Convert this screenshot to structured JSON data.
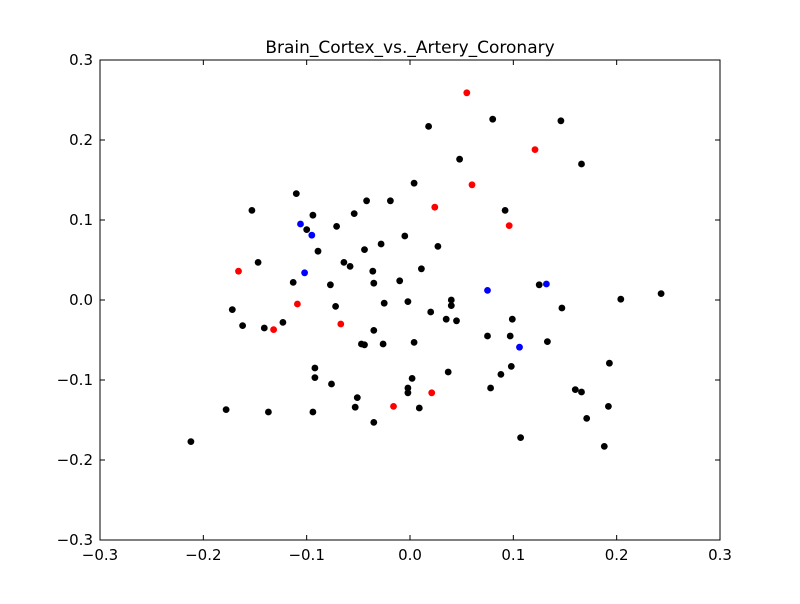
{
  "chart_data": {
    "type": "scatter",
    "title": "Brain_Cortex_vs._Artery_Coronary",
    "xlabel": "",
    "ylabel": "",
    "xlim": [
      -0.3,
      0.3
    ],
    "ylim": [
      -0.3,
      0.3
    ],
    "x_ticks": [
      "−0.3",
      "−0.2",
      "−0.1",
      "0.0",
      "0.1",
      "0.2",
      "0.3"
    ],
    "y_ticks": [
      "0.3",
      "0.2",
      "0.1",
      "0.0",
      "−0.1",
      "−0.2",
      "−0.3"
    ],
    "x_tick_values": [
      -0.3,
      -0.2,
      -0.1,
      0.0,
      0.1,
      0.2,
      0.3
    ],
    "y_tick_values": [
      0.3,
      0.2,
      0.1,
      0.0,
      -0.1,
      -0.2,
      -0.3
    ],
    "grid": false,
    "legend": "none",
    "series": [
      {
        "color": "#000000",
        "points": [
          [
            -0.212,
            -0.177
          ],
          [
            -0.178,
            -0.137
          ],
          [
            -0.172,
            -0.012
          ],
          [
            -0.162,
            -0.032
          ],
          [
            -0.153,
            0.112
          ],
          [
            -0.147,
            0.047
          ],
          [
            -0.141,
            -0.035
          ],
          [
            -0.137,
            -0.14
          ],
          [
            -0.123,
            -0.028
          ],
          [
            -0.113,
            0.022
          ],
          [
            -0.11,
            0.133
          ],
          [
            -0.1,
            0.088
          ],
          [
            -0.094,
            0.106
          ],
          [
            -0.094,
            -0.14
          ],
          [
            -0.092,
            -0.085
          ],
          [
            -0.092,
            -0.097
          ],
          [
            -0.089,
            0.061
          ],
          [
            -0.077,
            0.019
          ],
          [
            -0.076,
            -0.105
          ],
          [
            -0.072,
            -0.008
          ],
          [
            -0.071,
            0.092
          ],
          [
            -0.064,
            0.047
          ],
          [
            -0.058,
            0.042
          ],
          [
            -0.054,
            0.108
          ],
          [
            -0.053,
            -0.134
          ],
          [
            -0.051,
            -0.122
          ],
          [
            -0.047,
            -0.055
          ],
          [
            -0.044,
            0.063
          ],
          [
            -0.044,
            -0.056
          ],
          [
            -0.042,
            0.124
          ],
          [
            -0.036,
            0.036
          ],
          [
            -0.035,
            0.021
          ],
          [
            -0.035,
            -0.038
          ],
          [
            -0.035,
            -0.153
          ],
          [
            -0.028,
            0.07
          ],
          [
            -0.026,
            -0.055
          ],
          [
            -0.025,
            -0.004
          ],
          [
            -0.019,
            0.124
          ],
          [
            -0.01,
            0.024
          ],
          [
            -0.005,
            0.08
          ],
          [
            -0.002,
            -0.002
          ],
          [
            -0.002,
            -0.11
          ],
          [
            -0.002,
            -0.116
          ],
          [
            0.002,
            -0.098
          ],
          [
            0.004,
            0.146
          ],
          [
            0.004,
            -0.053
          ],
          [
            0.009,
            -0.135
          ],
          [
            0.011,
            0.039
          ],
          [
            0.018,
            0.217
          ],
          [
            0.02,
            -0.015
          ],
          [
            0.027,
            0.067
          ],
          [
            0.035,
            -0.024
          ],
          [
            0.037,
            -0.09
          ],
          [
            0.04,
            0.0
          ],
          [
            0.04,
            -0.007
          ],
          [
            0.045,
            -0.026
          ],
          [
            0.048,
            0.176
          ],
          [
            0.075,
            -0.045
          ],
          [
            0.078,
            -0.11
          ],
          [
            0.08,
            0.226
          ],
          [
            0.088,
            -0.093
          ],
          [
            0.092,
            0.112
          ],
          [
            0.097,
            -0.045
          ],
          [
            0.098,
            -0.083
          ],
          [
            0.099,
            -0.024
          ],
          [
            0.107,
            -0.172
          ],
          [
            0.125,
            0.019
          ],
          [
            0.133,
            -0.052
          ],
          [
            0.146,
            0.224
          ],
          [
            0.147,
            -0.01
          ],
          [
            0.16,
            -0.112
          ],
          [
            0.166,
            0.17
          ],
          [
            0.166,
            -0.115
          ],
          [
            0.171,
            -0.148
          ],
          [
            0.188,
            -0.183
          ],
          [
            0.192,
            -0.133
          ],
          [
            0.193,
            -0.079
          ],
          [
            0.204,
            0.001
          ],
          [
            0.243,
            0.008
          ]
        ]
      },
      {
        "color": "#ff0000",
        "points": [
          [
            -0.166,
            0.036
          ],
          [
            -0.132,
            -0.037
          ],
          [
            -0.109,
            -0.005
          ],
          [
            -0.067,
            -0.03
          ],
          [
            -0.016,
            -0.133
          ],
          [
            0.021,
            -0.116
          ],
          [
            0.024,
            0.116
          ],
          [
            0.055,
            0.259
          ],
          [
            0.06,
            0.144
          ],
          [
            0.096,
            0.093
          ],
          [
            0.121,
            0.188
          ]
        ]
      },
      {
        "color": "#0000ff",
        "points": [
          [
            -0.106,
            0.095
          ],
          [
            -0.095,
            0.081
          ],
          [
            -0.102,
            0.034
          ],
          [
            0.075,
            0.012
          ],
          [
            0.106,
            -0.059
          ],
          [
            0.132,
            0.02
          ]
        ]
      }
    ]
  }
}
